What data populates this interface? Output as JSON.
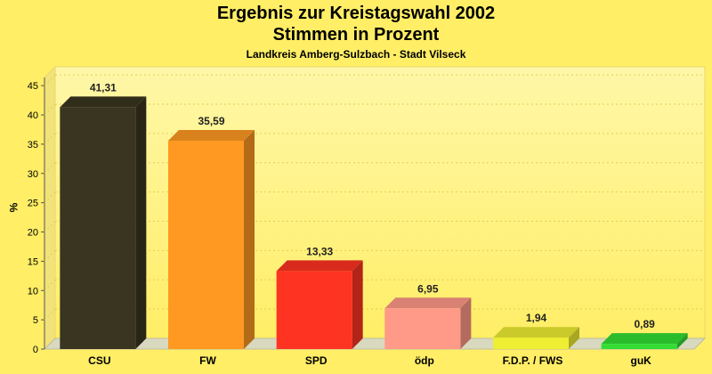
{
  "title": "Ergebnis zur Kreistagswahl 2002",
  "subtitle": "Stimmen in Prozent",
  "caption": "Landkreis Amberg-Sulzbach - Stadt Vilseck",
  "chart_data": {
    "type": "bar",
    "title": "Ergebnis zur Kreistagswahl 2002",
    "subtitle": "Stimmen in Prozent",
    "caption": "Landkreis Amberg-Sulzbach - Stadt Vilseck",
    "categories": [
      "CSU",
      "FW",
      "SPD",
      "ödp",
      "F.D.P. / FWS",
      "guK"
    ],
    "values": [
      41.31,
      35.59,
      13.33,
      6.95,
      1.94,
      0.89
    ],
    "value_labels": [
      "41,31",
      "35,59",
      "13,33",
      "6,95",
      "1,94",
      "0,89"
    ],
    "colors": [
      "#3a3520",
      "#ff9922",
      "#ff3322",
      "#ff9988",
      "#eeee33",
      "#33dd33"
    ],
    "ylabel": "%",
    "ylim": [
      0,
      47
    ],
    "yticks": [
      0,
      5,
      10,
      15,
      20,
      25,
      30,
      35,
      40,
      45
    ],
    "grid": true,
    "legend": "none"
  }
}
